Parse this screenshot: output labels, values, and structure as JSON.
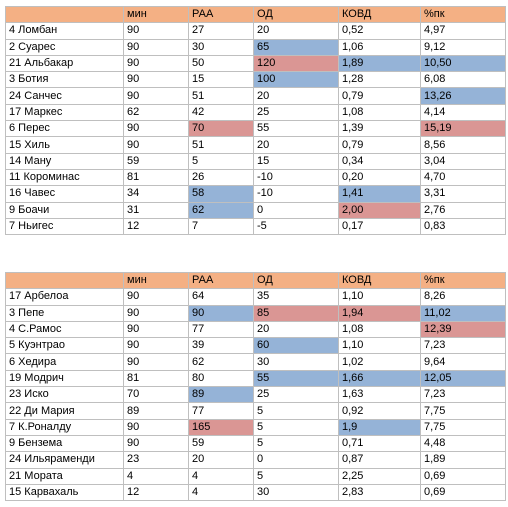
{
  "tables": [
    {
      "header": [
        "",
        "мин",
        "РАА",
        "ОД",
        "КОВД",
        "%пк"
      ],
      "rows": [
        [
          "4 Ломбан",
          "90",
          "27",
          "20",
          "0,52",
          "4,97"
        ],
        [
          "2 Суарес",
          "90",
          "30",
          {
            "text": "65",
            "fill": "#95b3d7"
          },
          "1,06",
          "9,12"
        ],
        [
          "21 Альбакар",
          "90",
          "50",
          {
            "text": "120",
            "fill": "#da9694"
          },
          {
            "text": "1,89",
            "fill": "#95b3d7"
          },
          {
            "text": "10,50",
            "fill": "#95b3d7"
          }
        ],
        [
          "3 Ботия",
          "90",
          "15",
          {
            "text": "100",
            "fill": "#95b3d7"
          },
          "1,28",
          "6,08"
        ],
        [
          "24 Санчес",
          "90",
          "51",
          "20",
          "0,79",
          {
            "text": "13,26",
            "fill": "#95b3d7"
          }
        ],
        [
          "17 Маркес",
          "62",
          "42",
          "25",
          "1,08",
          "4,14"
        ],
        [
          "6 Перес",
          "90",
          {
            "text": "70",
            "fill": "#da9694"
          },
          "55",
          "1,39",
          {
            "text": "15,19",
            "fill": "#da9694"
          }
        ],
        [
          "15 Хиль",
          "90",
          "51",
          "20",
          "0,79",
          "8,56"
        ],
        [
          "14 Ману",
          "59",
          "5",
          "15",
          "0,34",
          "3,04"
        ],
        [
          "11 Короминас",
          "81",
          "26",
          "-10",
          "0,20",
          "4,70"
        ],
        [
          "16 Чавес",
          "34",
          {
            "text": "58",
            "fill": "#95b3d7"
          },
          "-10",
          {
            "text": "1,41",
            "fill": "#95b3d7"
          },
          "3,31"
        ],
        [
          "9 Боачи",
          "31",
          {
            "text": "62",
            "fill": "#95b3d7"
          },
          "0",
          {
            "text": "2,00",
            "fill": "#da9694"
          },
          "2,76"
        ],
        [
          "7 Ньигес",
          "12",
          "7",
          "-5",
          "0,17",
          "0,83"
        ]
      ]
    },
    {
      "header": [
        "",
        "мин",
        "РАА",
        "ОД",
        "КОВД",
        "%пк"
      ],
      "rows": [
        [
          "17 Арбелоа",
          "90",
          "64",
          "35",
          "1,10",
          "8,26"
        ],
        [
          "3 Пепе",
          "90",
          {
            "text": "90",
            "fill": "#95b3d7"
          },
          {
            "text": "85",
            "fill": "#da9694"
          },
          {
            "text": "1,94",
            "fill": "#da9694"
          },
          {
            "text": "11,02",
            "fill": "#95b3d7"
          }
        ],
        [
          "4 С.Рамос",
          "90",
          "77",
          "20",
          "1,08",
          {
            "text": "12,39",
            "fill": "#da9694"
          }
        ],
        [
          "5 Куэнтрао",
          "90",
          "39",
          {
            "text": "60",
            "fill": "#95b3d7"
          },
          "1,10",
          "7,23"
        ],
        [
          "6 Хедира",
          "90",
          "62",
          "30",
          "1,02",
          "9,64"
        ],
        [
          "19 Модрич",
          "81",
          "80",
          {
            "text": "55",
            "fill": "#95b3d7"
          },
          {
            "text": "1,66",
            "fill": "#95b3d7"
          },
          {
            "text": "12,05",
            "fill": "#95b3d7"
          }
        ],
        [
          "23 Иско",
          "70",
          {
            "text": "89",
            "fill": "#95b3d7"
          },
          "25",
          "1,63",
          "7,23"
        ],
        [
          "22 Ди Мария",
          "89",
          "77",
          "5",
          "0,92",
          "7,75"
        ],
        [
          "7 К.Роналду",
          "90",
          {
            "text": "165",
            "fill": "#da9694"
          },
          "5",
          {
            "text": "1,9",
            "fill": "#95b3d7"
          },
          "7,75"
        ],
        [
          "9 Бензема",
          "90",
          "59",
          "5",
          "0,71",
          "4,48"
        ],
        [
          "24 Ильяраменди",
          "23",
          "20",
          "0",
          "0,87",
          "1,89"
        ],
        [
          "21 Мората",
          "4",
          "4",
          "5",
          "2,25",
          "0,69"
        ],
        [
          "15 Карвахаль",
          "12",
          "4",
          "30",
          "2,83",
          "0,69"
        ]
      ]
    }
  ],
  "header_fill": "#f4b084"
}
